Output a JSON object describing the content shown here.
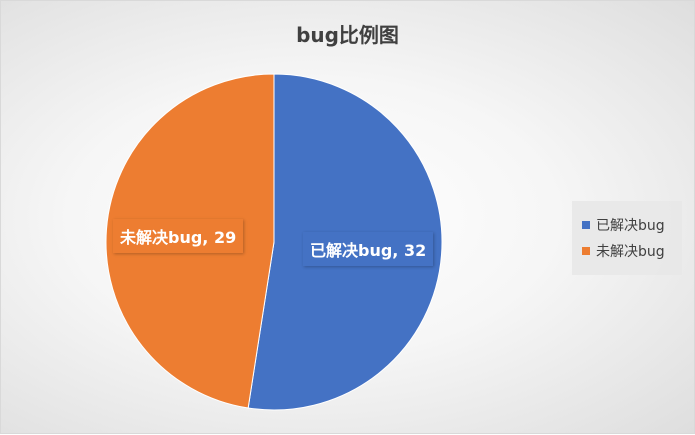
{
  "chart_data": {
    "type": "pie",
    "title": "bug比例图",
    "categories": [
      "已解决bug",
      "未解决bug"
    ],
    "values": [
      32,
      29
    ],
    "colors": [
      "#4472C4",
      "#ED7D31"
    ],
    "labels": [
      "已解决bug, 32",
      "未解决bug, 29"
    ],
    "legend_position": "right"
  }
}
